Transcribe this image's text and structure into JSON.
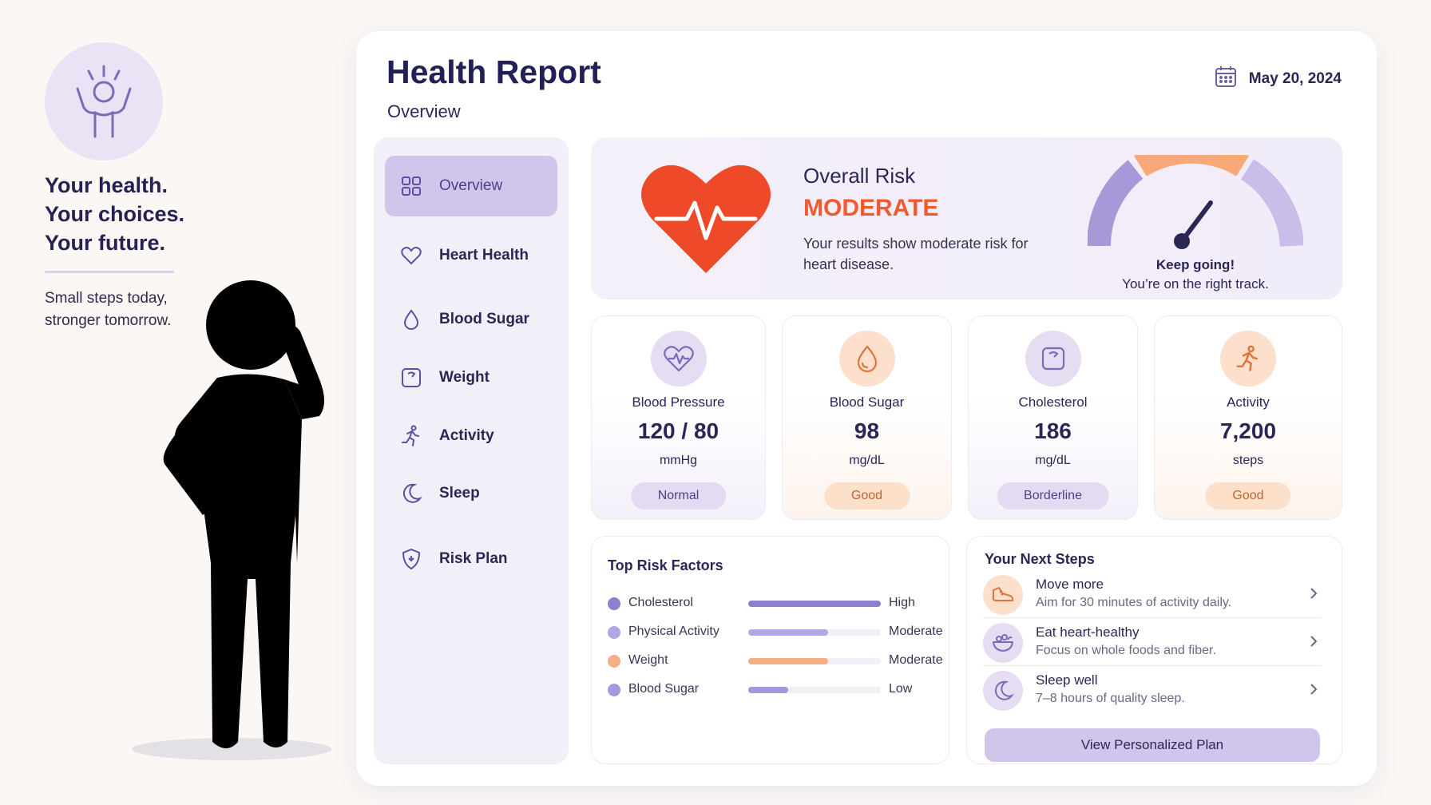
{
  "promo": {
    "tagline": [
      "Your health.",
      "Your choices.",
      "Your future."
    ],
    "subtext_line1": "Small steps today,",
    "subtext_line2": "stronger tomorrow."
  },
  "header": {
    "title": "Health Report",
    "subtitle": "Overview",
    "date": "May 20, 2024"
  },
  "sidebar": {
    "items": [
      {
        "label": "Overview",
        "icon": "grid-icon",
        "active": true
      },
      {
        "label": "Heart Health",
        "icon": "heart-icon"
      },
      {
        "label": "Blood Sugar",
        "icon": "drop-icon"
      },
      {
        "label": "Weight",
        "icon": "scale-icon"
      },
      {
        "label": "Activity",
        "icon": "runner-icon"
      },
      {
        "label": "Sleep",
        "icon": "moon-icon"
      },
      {
        "label": "Risk Plan",
        "icon": "shield-icon"
      }
    ]
  },
  "risk": {
    "label": "Overall Risk",
    "level": "MODERATE",
    "description": "Your results show moderate risk for heart disease.",
    "gauge_message": "Keep going!",
    "gauge_submessage": "You’re on the right track.",
    "colors": {
      "level": "#ee5b30",
      "gauge_low": "#a898d8",
      "gauge_mid": "#f9a877",
      "gauge_high": "#c9bdea"
    }
  },
  "metrics": [
    {
      "label": "Blood Pressure",
      "value": "120 / 80",
      "unit": "mmHg",
      "status": "Normal",
      "icon": "heart-pulse-icon",
      "theme": "purple"
    },
    {
      "label": "Blood Sugar",
      "value": "98",
      "unit": "mg/dL",
      "status": "Good",
      "icon": "drop-icon",
      "theme": "orange"
    },
    {
      "label": "Cholesterol",
      "value": "186",
      "unit": "mg/dL",
      "status": "Borderline",
      "icon": "scale-icon",
      "theme": "purple"
    },
    {
      "label": "Activity",
      "value": "7,200",
      "unit": "steps",
      "status": "Good",
      "icon": "runner-icon",
      "theme": "orange"
    }
  ],
  "risk_factors": {
    "title": "Top Risk Factors",
    "items": [
      {
        "name": "Cholesterol",
        "level": "High",
        "fraction": 1.0,
        "color": "#8f7fd0"
      },
      {
        "name": "Physical Activity",
        "level": "Moderate",
        "fraction": 0.6,
        "color": "#b4a6e2"
      },
      {
        "name": "Weight",
        "level": "Moderate",
        "fraction": 0.6,
        "color": "#f6ae86"
      },
      {
        "name": "Blood Sugar",
        "level": "Low",
        "fraction": 0.3,
        "color": "#a797dc"
      }
    ]
  },
  "next_steps": {
    "title": "Your Next Steps",
    "items": [
      {
        "title": "Move more",
        "description": "Aim for 30 minutes of activity daily.",
        "icon": "shoe-icon"
      },
      {
        "title": "Eat heart-healthy",
        "description": "Focus on whole foods and fiber.",
        "icon": "bowl-icon"
      },
      {
        "title": "Sleep well",
        "description": "7–8 hours of quality sleep.",
        "icon": "moon-icon"
      }
    ],
    "button_label": "View Personalized Plan"
  }
}
